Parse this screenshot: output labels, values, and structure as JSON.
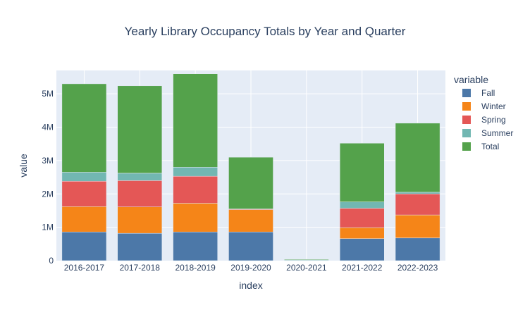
{
  "chart_data": {
    "type": "bar",
    "stacked": true,
    "title": "Yearly Library Occupancy Totals by Year and Quarter",
    "xlabel": "index",
    "ylabel": "value",
    "ylim": [
      0,
      5700000
    ],
    "yticks": [
      0,
      1000000,
      2000000,
      3000000,
      4000000,
      5000000
    ],
    "ytick_labels": [
      "0",
      "1M",
      "2M",
      "3M",
      "4M",
      "5M"
    ],
    "categories": [
      "2016-2017",
      "2017-2018",
      "2018-2019",
      "2019-2020",
      "2020-2021",
      "2021-2022",
      "2022-2023"
    ],
    "legend_title": "variable",
    "legend_position": "right",
    "grid": true,
    "series": [
      {
        "name": "Fall",
        "color": "#4c78a8",
        "values": [
          860000,
          820000,
          860000,
          860000,
          0,
          660000,
          680000
        ]
      },
      {
        "name": "Winter",
        "color": "#f58518",
        "values": [
          760000,
          790000,
          860000,
          670000,
          0,
          330000,
          690000
        ]
      },
      {
        "name": "Spring",
        "color": "#e45756",
        "values": [
          760000,
          790000,
          810000,
          20000,
          0,
          580000,
          630000
        ]
      },
      {
        "name": "Summer",
        "color": "#72b7b2",
        "values": [
          270000,
          220000,
          270000,
          0,
          20000,
          190000,
          50000
        ]
      },
      {
        "name": "Total",
        "color": "#54a24b",
        "values": [
          2650000,
          2620000,
          2800000,
          1550000,
          20000,
          1760000,
          2070000
        ]
      }
    ]
  }
}
